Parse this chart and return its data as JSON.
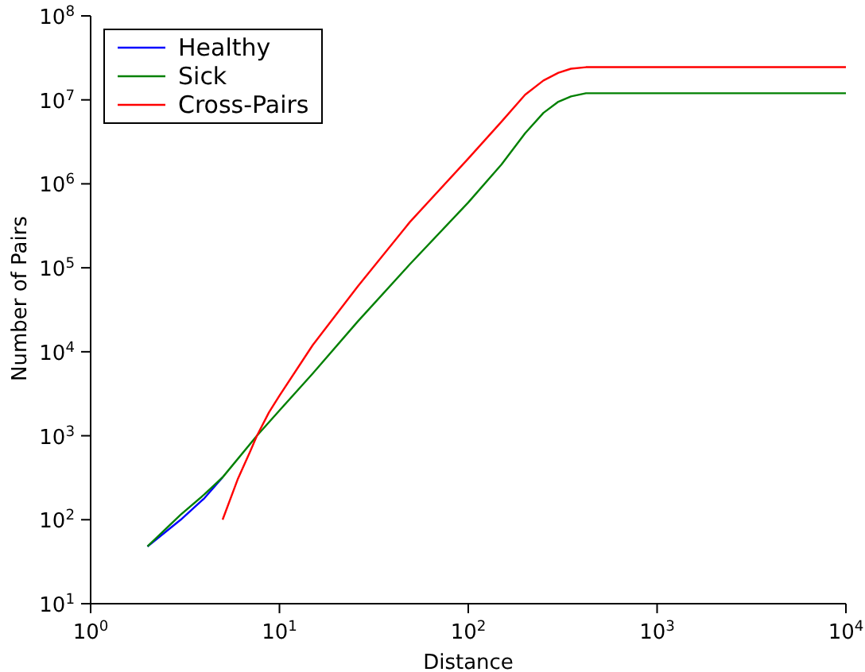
{
  "chart_data": {
    "type": "line",
    "xlabel": "Distance",
    "ylabel": "Number of Pairs",
    "log": "xy",
    "grid": false,
    "legend": "top left",
    "marker": "none",
    "line_style": "solid",
    "xlim": [
      1,
      10000
    ],
    "xticks": [
      {
        "value": 1,
        "label": "10$^{0}$"
      },
      {
        "value": 10,
        "label": "10$^{1}$"
      },
      {
        "value": 100,
        "label": "10$^{2}$"
      },
      {
        "value": 1000,
        "label": "10$^{3}$"
      },
      {
        "value": 10000,
        "label": "10$^{4}$"
      }
    ],
    "ylim": [
      10,
      100000000
    ],
    "yticks": [
      {
        "value": 10,
        "label": "10$^{1}$"
      },
      {
        "value": 100,
        "label": "10$^{2}$"
      },
      {
        "value": 1000,
        "label": "10$^{3}$"
      },
      {
        "value": 10000,
        "label": "10$^{4}$"
      },
      {
        "value": 100000,
        "label": "10$^{5}$"
      },
      {
        "value": 1000000,
        "label": "10$^{6}$"
      },
      {
        "value": 10000000,
        "label": "10$^{7}$"
      },
      {
        "value": 100000000,
        "label": "10$^{8}$"
      }
    ],
    "series": [
      {
        "name": "Healthy",
        "color": "#0000ff",
        "x": [
          2,
          3,
          4,
          5
        ],
        "values": [
          48,
          100,
          180,
          320
        ]
      },
      {
        "name": "Sick",
        "color": "#008000",
        "x": [
          2,
          3,
          4,
          5,
          7.6,
          10,
          15,
          26,
          49,
          100,
          150,
          200,
          250,
          300,
          350,
          420,
          500,
          10000
        ],
        "values": [
          48,
          115,
          200,
          320,
          1000,
          2000,
          5500,
          23000,
          110000,
          600000,
          1700000,
          4000000,
          7000000,
          9500000,
          11000000,
          12000000,
          12000000,
          12000000
        ]
      },
      {
        "name": "Cross-Pairs",
        "color": "#ff0000",
        "x": [
          5,
          6,
          7,
          7.6,
          8.8,
          10,
          15,
          26,
          49,
          100,
          150,
          200,
          250,
          300,
          350,
          420,
          500,
          10000
        ],
        "values": [
          100,
          300,
          650,
          1000,
          1900,
          3000,
          12000,
          60000,
          350000,
          2000000,
          5500000,
          11500000,
          17000000,
          21000000,
          23500000,
          24500000,
          24500000,
          24500000
        ]
      }
    ]
  }
}
